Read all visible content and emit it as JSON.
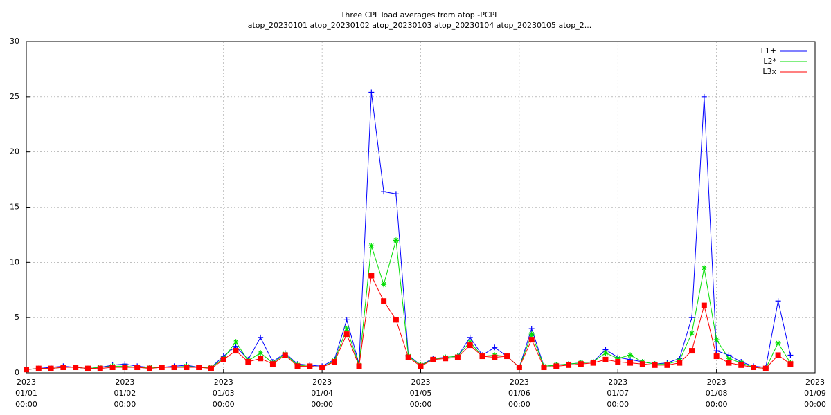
{
  "chart_data": {
    "type": "line",
    "title": "Three CPL load averages from atop -PCPL",
    "subtitle": "atop_20230101 atop_20230102 atop_20230103 atop_20230104 atop_20230105 atop_2...",
    "x": [
      "2023-01-01 00:00",
      "2023-01-01 03:00",
      "2023-01-01 06:00",
      "2023-01-01 09:00",
      "2023-01-01 12:00",
      "2023-01-01 15:00",
      "2023-01-01 18:00",
      "2023-01-01 21:00",
      "2023-01-02 00:00",
      "2023-01-02 03:00",
      "2023-01-02 06:00",
      "2023-01-02 09:00",
      "2023-01-02 12:00",
      "2023-01-02 15:00",
      "2023-01-02 18:00",
      "2023-01-02 21:00",
      "2023-01-03 00:00",
      "2023-01-03 03:00",
      "2023-01-03 06:00",
      "2023-01-03 09:00",
      "2023-01-03 12:00",
      "2023-01-03 15:00",
      "2023-01-03 18:00",
      "2023-01-03 21:00",
      "2023-01-04 00:00",
      "2023-01-04 03:00",
      "2023-01-04 06:00",
      "2023-01-04 09:00",
      "2023-01-04 12:00",
      "2023-01-04 15:00",
      "2023-01-04 18:00",
      "2023-01-04 21:00",
      "2023-01-05 00:00",
      "2023-01-05 03:00",
      "2023-01-05 06:00",
      "2023-01-05 09:00",
      "2023-01-05 12:00",
      "2023-01-05 15:00",
      "2023-01-05 18:00",
      "2023-01-05 21:00",
      "2023-01-06 00:00",
      "2023-01-06 03:00",
      "2023-01-06 06:00",
      "2023-01-06 09:00",
      "2023-01-06 12:00",
      "2023-01-06 15:00",
      "2023-01-06 18:00",
      "2023-01-06 21:00",
      "2023-01-07 00:00",
      "2023-01-07 03:00",
      "2023-01-07 06:00",
      "2023-01-07 09:00",
      "2023-01-07 12:00",
      "2023-01-07 15:00",
      "2023-01-07 18:00",
      "2023-01-07 21:00",
      "2023-01-08 00:00",
      "2023-01-08 03:00",
      "2023-01-08 06:00",
      "2023-01-08 09:00",
      "2023-01-08 12:00",
      "2023-01-08 15:00",
      "2023-01-08 18:00"
    ],
    "series": [
      {
        "name": "L1+",
        "color": "#0000ff",
        "marker": "plus",
        "values": [
          0.3,
          0.4,
          0.5,
          0.6,
          0.5,
          0.4,
          0.5,
          0.7,
          0.8,
          0.6,
          0.5,
          0.5,
          0.6,
          0.7,
          0.5,
          0.5,
          1.5,
          2.4,
          1.2,
          3.2,
          1.0,
          1.8,
          0.8,
          0.7,
          0.6,
          1.2,
          4.8,
          0.8,
          25.4,
          16.4,
          16.2,
          1.6,
          0.7,
          1.3,
          1.4,
          1.5,
          3.2,
          1.6,
          2.3,
          1.5,
          0.5,
          4.0,
          0.6,
          0.7,
          0.8,
          0.9,
          1.0,
          2.1,
          1.4,
          1.2,
          1.0,
          0.8,
          0.9,
          1.3,
          5.0,
          25.0,
          2.0,
          1.6,
          1.0,
          0.6,
          0.5,
          6.5,
          1.6
        ]
      },
      {
        "name": "L2*",
        "color": "#00dd00",
        "marker": "star",
        "values": [
          0.3,
          0.4,
          0.4,
          0.5,
          0.5,
          0.4,
          0.5,
          0.6,
          0.6,
          0.5,
          0.5,
          0.5,
          0.5,
          0.6,
          0.5,
          0.5,
          1.3,
          2.8,
          1.1,
          1.8,
          0.9,
          1.7,
          0.7,
          0.6,
          0.5,
          1.1,
          4.0,
          0.7,
          11.5,
          8.0,
          12.0,
          1.5,
          0.7,
          1.2,
          1.4,
          1.5,
          2.8,
          1.5,
          1.6,
          1.5,
          0.5,
          3.5,
          0.6,
          0.7,
          0.8,
          0.9,
          1.0,
          1.8,
          1.3,
          1.6,
          1.0,
          0.8,
          0.8,
          1.1,
          3.6,
          9.5,
          3.0,
          1.3,
          0.9,
          0.5,
          0.4,
          2.7,
          0.9
        ]
      },
      {
        "name": "L3x",
        "color": "#ff0000",
        "marker": "square",
        "values": [
          0.3,
          0.4,
          0.4,
          0.5,
          0.5,
          0.4,
          0.4,
          0.5,
          0.5,
          0.5,
          0.4,
          0.5,
          0.5,
          0.5,
          0.5,
          0.4,
          1.2,
          2.0,
          1.0,
          1.3,
          0.8,
          1.6,
          0.6,
          0.6,
          0.5,
          1.0,
          3.5,
          0.6,
          8.8,
          6.5,
          4.8,
          1.4,
          0.6,
          1.2,
          1.3,
          1.4,
          2.5,
          1.5,
          1.4,
          1.5,
          0.5,
          3.0,
          0.5,
          0.6,
          0.7,
          0.8,
          0.9,
          1.2,
          1.0,
          0.9,
          0.8,
          0.7,
          0.7,
          0.9,
          2.0,
          6.1,
          1.5,
          0.9,
          0.7,
          0.5,
          0.4,
          1.6,
          0.8
        ]
      }
    ],
    "xlim": [
      "2023-01-01 00:00",
      "2023-01-09 00:00"
    ],
    "xticks": [
      {
        "value": "2023-01-01 00:00",
        "label": [
          "2023",
          "01/01",
          "00:00"
        ]
      },
      {
        "value": "2023-01-02 00:00",
        "label": [
          "2023",
          "01/02",
          "00:00"
        ]
      },
      {
        "value": "2023-01-03 00:00",
        "label": [
          "2023",
          "01/03",
          "00:00"
        ]
      },
      {
        "value": "2023-01-04 00:00",
        "label": [
          "2023",
          "01/04",
          "00:00"
        ]
      },
      {
        "value": "2023-01-05 00:00",
        "label": [
          "2023",
          "01/05",
          "00:00"
        ]
      },
      {
        "value": "2023-01-06 00:00",
        "label": [
          "2023",
          "01/06",
          "00:00"
        ]
      },
      {
        "value": "2023-01-07 00:00",
        "label": [
          "2023",
          "01/07",
          "00:00"
        ]
      },
      {
        "value": "2023-01-08 00:00",
        "label": [
          "2023",
          "01/08",
          "00:00"
        ]
      },
      {
        "value": "2023-01-09 00:00",
        "label": [
          "2023",
          "01/09",
          "00:00"
        ]
      }
    ],
    "ylim": [
      0,
      30
    ],
    "yticks": [
      0,
      5,
      10,
      15,
      20,
      25,
      30
    ],
    "grid": true,
    "legend": "top-right"
  }
}
